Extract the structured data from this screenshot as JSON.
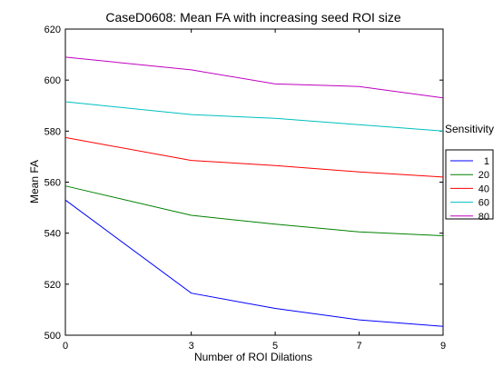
{
  "chart_data": {
    "type": "line",
    "title": "CaseD0608: Mean FA with increasing seed ROI size",
    "xlabel": "Number of ROI Dilations",
    "ylabel": "Mean FA",
    "x": [
      0,
      3,
      5,
      7,
      9
    ],
    "xticks": [
      "0",
      "3",
      "5",
      "7",
      "9"
    ],
    "yticks": [
      "500",
      "520",
      "540",
      "560",
      "580",
      "600",
      "620"
    ],
    "xlim": [
      0,
      9
    ],
    "ylim": [
      500,
      620
    ],
    "grid": false,
    "legend_title": "Sensitivity",
    "legend_position": "outside-right",
    "series": [
      {
        "name": "1",
        "color": "#0000ff",
        "values": [
          553,
          516.5,
          510.5,
          506,
          503.5
        ]
      },
      {
        "name": "20",
        "color": "#008000",
        "values": [
          558.5,
          547,
          543.5,
          540.5,
          539
        ]
      },
      {
        "name": "40",
        "color": "#ff0000",
        "values": [
          577.5,
          568.5,
          566.5,
          564,
          562
        ]
      },
      {
        "name": "60",
        "color": "#00bfbf",
        "values": [
          591.5,
          586.5,
          585,
          582.5,
          580
        ]
      },
      {
        "name": "80",
        "color": "#bf00bf",
        "values": [
          609,
          604,
          598.5,
          597.5,
          593
        ]
      }
    ]
  }
}
